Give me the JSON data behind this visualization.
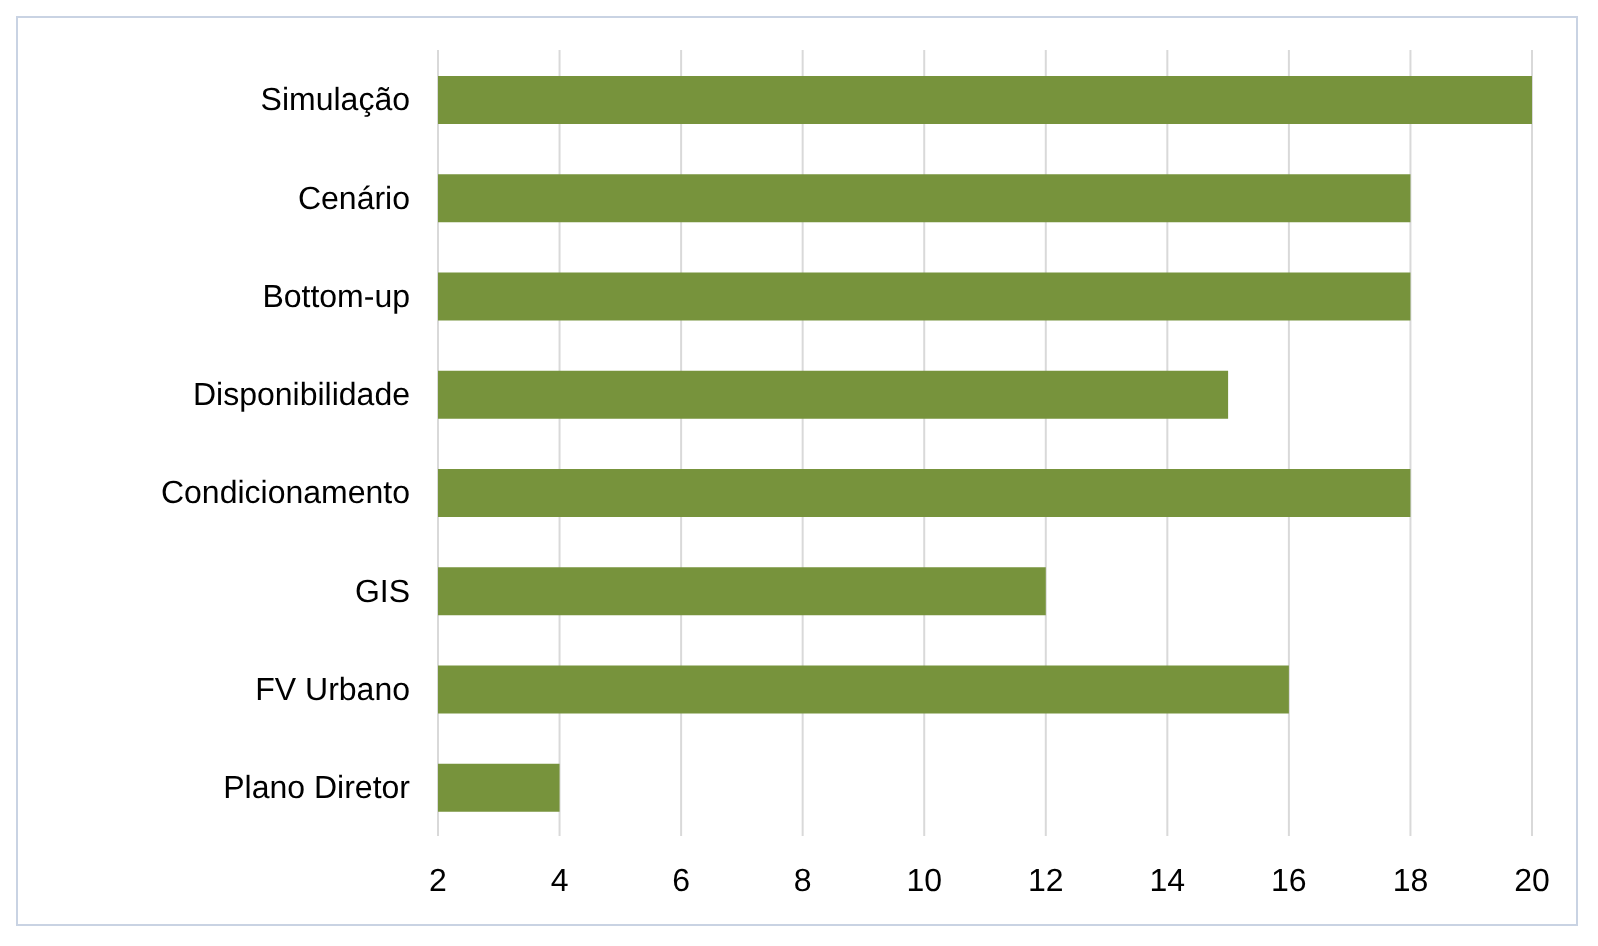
{
  "chart_data": {
    "type": "bar",
    "orientation": "horizontal",
    "categories": [
      "Simulação",
      "Cenário",
      "Bottom-up",
      "Disponibilidade",
      "Condicionamento",
      "GIS",
      "FV Urbano",
      "Plano Diretor"
    ],
    "values": [
      20,
      18,
      18,
      15,
      18,
      12,
      16,
      4
    ],
    "color": "#77933c",
    "xlim": [
      2,
      20
    ],
    "xticks": [
      2,
      4,
      6,
      8,
      10,
      12,
      14,
      16,
      18,
      20
    ],
    "grid": "x"
  }
}
